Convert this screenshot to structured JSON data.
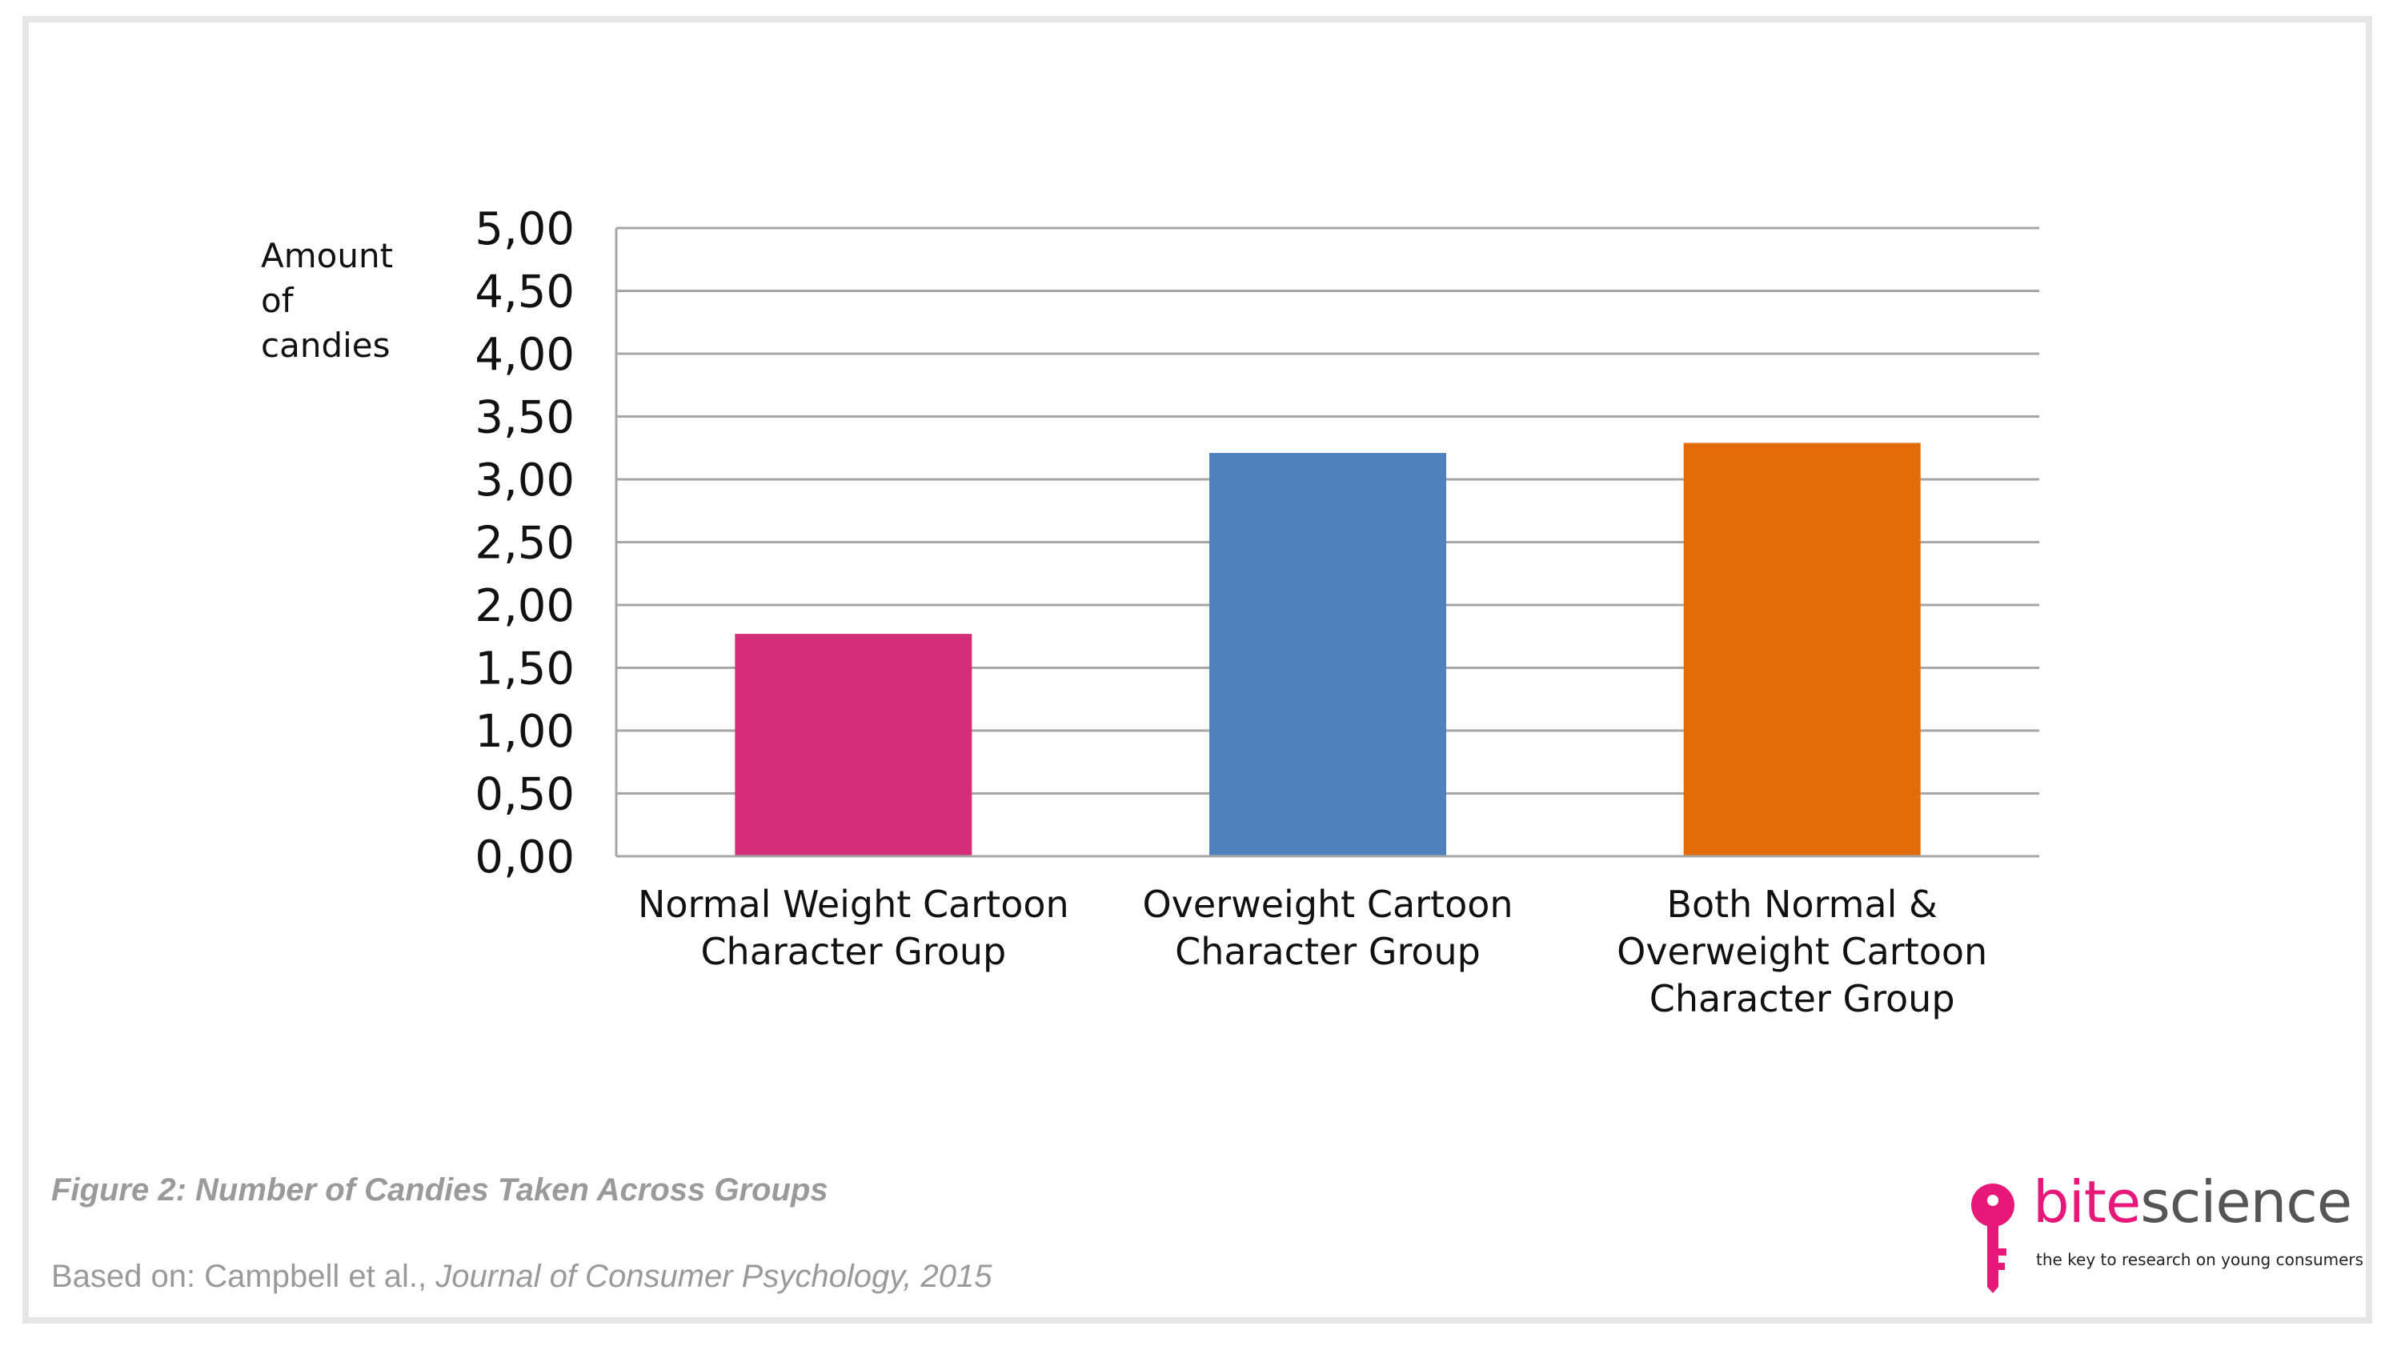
{
  "chart_data": {
    "type": "bar",
    "categories": [
      "Normal Weight Cartoon Character Group",
      "Overweight Cartoon Character Group",
      "Both Normal & Overweight Cartoon Character Group"
    ],
    "category_lines": [
      [
        "Normal Weight Cartoon",
        "Character Group"
      ],
      [
        "Overweight Cartoon",
        "Character Group"
      ],
      [
        "Both Normal &",
        "Overweight Cartoon",
        "Character Group"
      ]
    ],
    "values": [
      1.77,
      3.21,
      3.29
    ],
    "colors": [
      "#d42e78",
      "#4f81bd",
      "#e36c0a"
    ],
    "ylabel_lines": [
      "Amount",
      "of",
      "candies"
    ],
    "ylim": [
      0,
      5
    ],
    "yticks": [
      "0,00",
      "0,50",
      "1,00",
      "1,50",
      "2,00",
      "2,50",
      "3,00",
      "3,50",
      "4,00",
      "4,50",
      "5,00"
    ],
    "grid": true
  },
  "caption": "Figure 2: Number of Candies Taken Across Groups",
  "source": {
    "prefix": "Based on: Campbell et al., ",
    "journal": "Journal of Consumer Psychology, 2015"
  },
  "logo": {
    "bite": "bite",
    "science": "science",
    "tagline": "the key to research on young consumers",
    "accent": "#e6197a"
  }
}
